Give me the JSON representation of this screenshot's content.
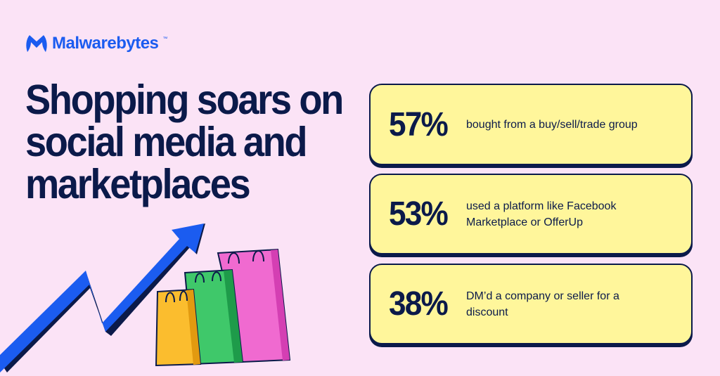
{
  "brand": {
    "name": "Malwarebytes",
    "tm": "™",
    "logo_icon": "malwarebytes-m-icon",
    "color": "#1b5cf0"
  },
  "headline": "Shopping soars on social media and marketplaces",
  "stats": [
    {
      "percent": "57%",
      "text": "bought from a buy/sell/trade group"
    },
    {
      "percent": "53%",
      "text": "used a platform like Facebook Marketplace or OfferUp"
    },
    {
      "percent": "38%",
      "text": "DM’d a company or seller for a discount"
    }
  ],
  "illustration": {
    "icons": [
      "rising-arrow-icon",
      "shopping-bags-icon"
    ]
  },
  "colors": {
    "background": "#fbe3f6",
    "card": "#fff69b",
    "navy": "#0b1a4a"
  }
}
